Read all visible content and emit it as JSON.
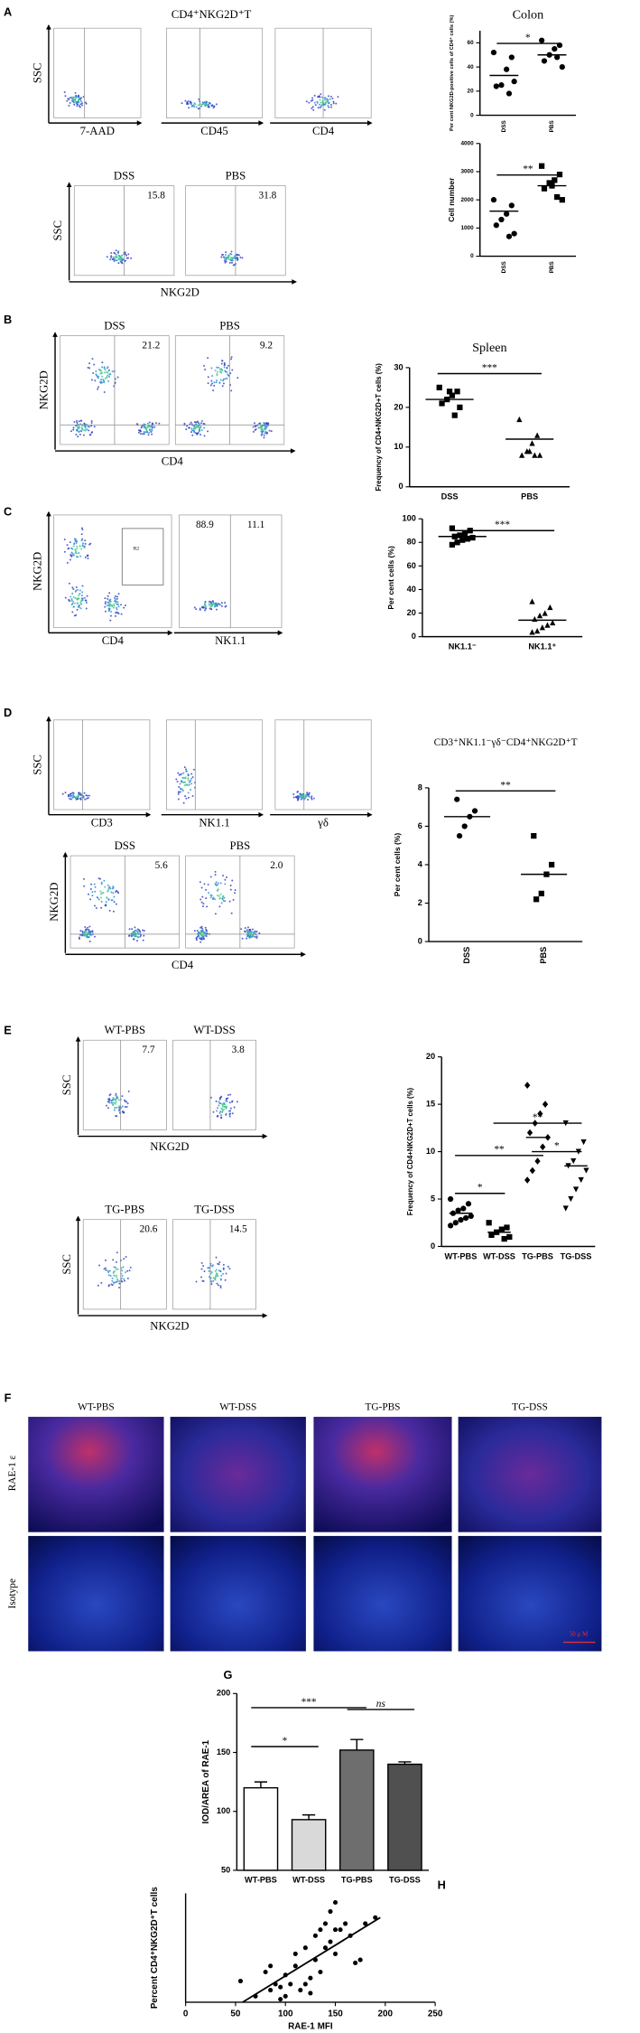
{
  "panel_labels": [
    "A",
    "B",
    "C",
    "D",
    "E",
    "F",
    "G",
    "H"
  ],
  "flow": {
    "title": "CD4⁺NKG2D⁺T",
    "plots": [
      {
        "ylabel": "SSC",
        "xlabel": "7-AAD"
      },
      {
        "xlabel": "CD45"
      },
      {
        "xlabel": "CD4"
      },
      {
        "ylabel": "SSC",
        "title": "DSS",
        "values": [
          "15.8"
        ]
      },
      {
        "title": "PBS",
        "values": [
          "31.8"
        ]
      },
      {
        "ylabel": "NKG2D",
        "title": "DSS",
        "values": [
          "21.2"
        ]
      },
      {
        "title": "PBS",
        "values": [
          "9.2"
        ]
      },
      {
        "ylabel": "NKG2D",
        "xlabel": "CD4",
        "gate": "R2"
      },
      {
        "xlabel": "NK1.1",
        "values": [
          "88.9",
          "11.1"
        ]
      },
      {
        "ylabel": "SSC",
        "xlabel": "CD3"
      },
      {
        "xlabel": "NK1.1"
      },
      {
        "xlabel": "γδ"
      },
      {
        "ylabel": "NKG2D",
        "title": "DSS",
        "values": [
          "5.6"
        ]
      },
      {
        "title": "PBS",
        "values": [
          "2.0"
        ]
      },
      {
        "ylabel": "SSC",
        "title": "WT-PBS",
        "values": [
          "7.7"
        ]
      },
      {
        "title": "WT-DSS",
        "values": [
          "3.8"
        ]
      },
      {
        "ylabel": "SSC",
        "title": "TG-PBS",
        "values": [
          "20.6"
        ]
      },
      {
        "title": "TG-DSS",
        "values": [
          "14.5"
        ]
      }
    ],
    "shared_labels": [
      "NKG2D",
      "CD4",
      "CD4",
      "NKG2D",
      "NKG2D"
    ]
  },
  "images": {
    "columns": [
      "WT-PBS",
      "WT-DSS",
      "TG-PBS",
      "TG-DSS"
    ],
    "rows": [
      "RAE-1 ε",
      "Isotype"
    ],
    "scale": "50 μ M"
  },
  "chart_data": [
    {
      "type": "dot",
      "title": "Colon",
      "y_label": "Per cent NKG2D-positive cells of CD4⁺ cells (%)",
      "categories": [
        "DSS",
        "PBS"
      ],
      "markers": [
        "circle",
        "circle"
      ],
      "values": [
        [
          52,
          48,
          38,
          25,
          24,
          28,
          18
        ],
        [
          62,
          58,
          55,
          50,
          45,
          40,
          48
        ]
      ],
      "means": [
        33,
        50
      ],
      "ylim": [
        0,
        70
      ],
      "yticks": [
        0,
        20,
        40,
        60
      ],
      "significance": [
        "*"
      ]
    },
    {
      "type": "dot",
      "y_label": "Cell number",
      "categories": [
        "DSS",
        "PBS"
      ],
      "markers": [
        "circle",
        "square"
      ],
      "values": [
        [
          2000,
          1800,
          1500,
          1300,
          1100,
          800,
          700
        ],
        [
          3200,
          2900,
          2700,
          2600,
          2400,
          2000,
          2100,
          2500
        ]
      ],
      "means": [
        1600,
        2500
      ],
      "ylim": [
        0,
        4000
      ],
      "yticks": [
        0,
        1000,
        2000,
        3000,
        4000
      ],
      "significance": [
        "**"
      ]
    },
    {
      "type": "dot",
      "title": "Spleen",
      "y_label": "Frequency of CD4+NKG2D+T cells (%)",
      "categories": [
        "DSS",
        "PBS"
      ],
      "markers": [
        "square",
        "triangle"
      ],
      "values": [
        [
          25,
          24,
          23,
          22,
          21,
          20,
          18,
          24
        ],
        [
          17,
          13,
          11,
          9,
          8,
          8,
          8,
          9
        ]
      ],
      "means": [
        22,
        12
      ],
      "ylim": [
        0,
        30
      ],
      "yticks": [
        0,
        10,
        20,
        30
      ],
      "significance": [
        "***"
      ]
    },
    {
      "type": "dot",
      "y_label": "Per cent cells (%)",
      "categories": [
        "NK1.1⁻",
        "NK1.1⁺"
      ],
      "markers": [
        "square",
        "triangle"
      ],
      "values": [
        [
          92,
          90,
          88,
          86,
          85,
          84,
          83,
          82,
          80,
          78
        ],
        [
          30,
          25,
          20,
          18,
          15,
          12,
          10,
          8,
          5,
          4
        ]
      ],
      "means": [
        85,
        14
      ],
      "ylim": [
        0,
        100
      ],
      "yticks": [
        0,
        20,
        40,
        60,
        80,
        100
      ],
      "significance": [
        "***"
      ]
    },
    {
      "type": "dot",
      "title": "CD3⁺NK1.1⁻γδ⁻CD4⁺NKG2D⁺T",
      "y_label": "Per cent cells (%)",
      "categories": [
        "DSS",
        "PBS"
      ],
      "markers": [
        "circle",
        "square"
      ],
      "values": [
        [
          7.4,
          6.8,
          6.5,
          6.0,
          5.5
        ],
        [
          5.5,
          4.0,
          3.5,
          2.5,
          2.2
        ]
      ],
      "means": [
        6.5,
        3.5
      ],
      "ylim": [
        0,
        8
      ],
      "yticks": [
        0,
        2,
        4,
        6,
        8
      ],
      "significance": [
        "**"
      ]
    },
    {
      "type": "dot",
      "y_label": "Frequency of CD4+NKG2D+T cells (%)",
      "categories": [
        "WT-PBS",
        "WT-DSS",
        "TG-PBS",
        "TG-DSS"
      ],
      "markers": [
        "circle",
        "square",
        "diamond",
        "triangle-down"
      ],
      "values": [
        [
          5,
          4.5,
          4,
          3.8,
          3.5,
          3.2,
          3,
          2.8,
          2.5,
          2.2
        ],
        [
          2.5,
          2,
          1.8,
          1.5,
          1.2,
          1,
          0.8
        ],
        [
          17,
          15,
          14,
          13,
          12,
          11.5,
          10.5,
          9,
          8,
          7
        ],
        [
          13,
          11,
          10,
          9,
          8.5,
          8,
          7,
          6,
          5,
          4
        ]
      ],
      "means": [
        3.5,
        1.5,
        11.5,
        8.5
      ],
      "ylim": [
        0,
        20
      ],
      "yticks": [
        0,
        5,
        10,
        15,
        20
      ],
      "significance": [
        "*",
        "**",
        "**",
        "*"
      ]
    },
    {
      "type": "bar",
      "y_label": "IOD/AREA of RAE-1",
      "categories": [
        "WT-PBS",
        "WT-DSS",
        "TG-PBS",
        "TG-DSS"
      ],
      "values": [
        120,
        93,
        152,
        140
      ],
      "errors": [
        5,
        4,
        9,
        2
      ],
      "colors": [
        "#ffffff",
        "#d9d9d9",
        "#6e6e6e",
        "#505050"
      ],
      "ylim": [
        50,
        200
      ],
      "yticks": [
        50,
        100,
        150,
        200
      ],
      "significance": [
        "*",
        "***",
        "ns"
      ]
    },
    {
      "type": "scatter",
      "y_label": "Percent CD4⁺NKG2D⁺T cells",
      "x_label": "RAE-1 MFI",
      "x": [
        55,
        70,
        80,
        85,
        90,
        95,
        100,
        100,
        105,
        110,
        110,
        115,
        120,
        120,
        125,
        125,
        130,
        130,
        135,
        135,
        140,
        140,
        145,
        145,
        150,
        150,
        155,
        160,
        165,
        170,
        175,
        180,
        190,
        95,
        85,
        150
      ],
      "values": [
        3.5,
        1,
        5,
        2,
        3,
        2.5,
        4.5,
        1,
        3,
        6,
        8,
        2,
        3,
        9,
        4,
        1.5,
        7,
        11,
        12,
        5,
        9,
        13,
        15,
        10,
        16.5,
        8,
        12,
        13,
        11,
        6.5,
        7,
        13,
        14,
        0.5,
        6,
        12
      ],
      "fit": {
        "x": [
          57,
          195
        ],
        "values": [
          0,
          14
        ]
      },
      "xlim": [
        0,
        250
      ],
      "xticks": [
        0,
        50,
        100,
        150,
        200,
        250
      ],
      "ylim": [
        0,
        18
      ]
    }
  ]
}
